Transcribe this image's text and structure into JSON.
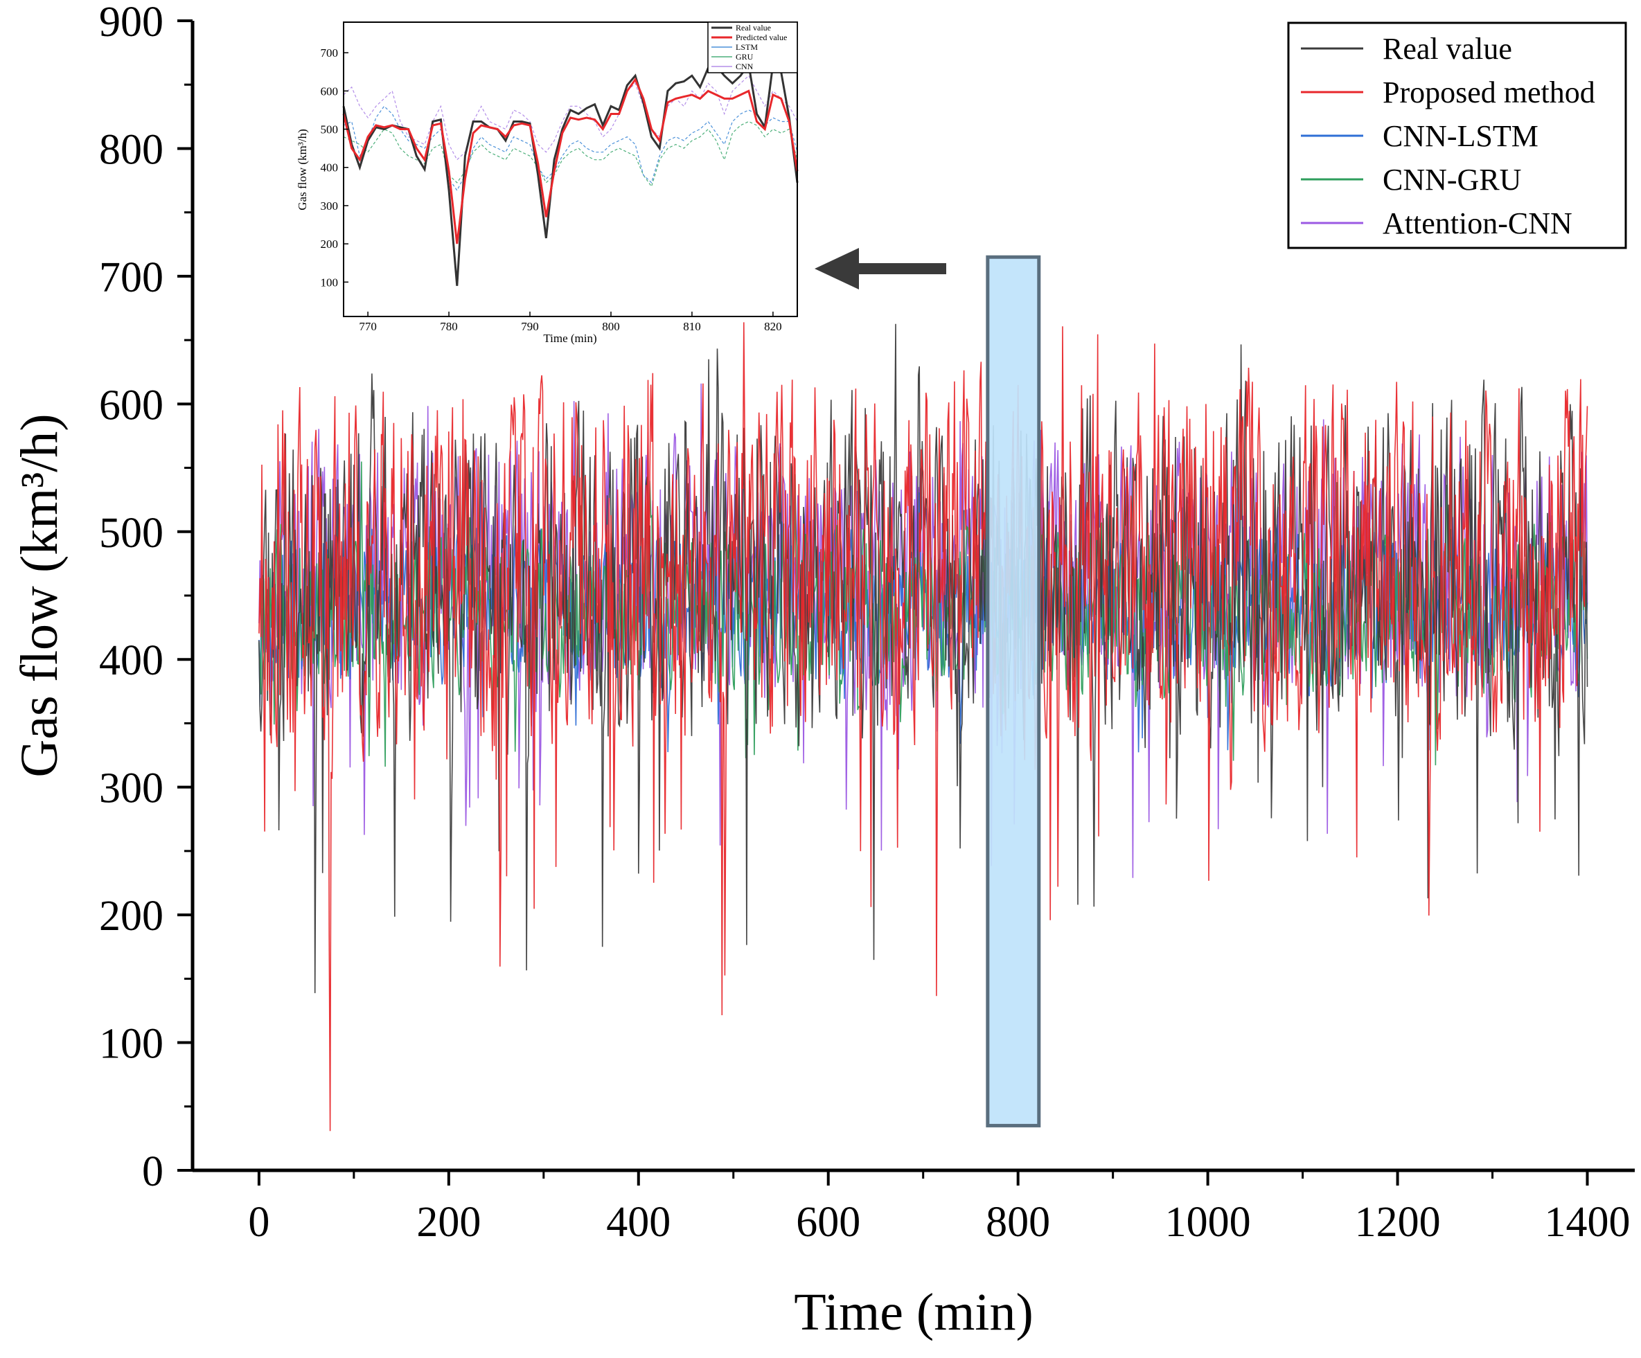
{
  "chart_data": {
    "type": "line",
    "title": "",
    "xlabel": "Time (min)",
    "ylabel": "Gas flow (km³/h)",
    "xlim": [
      -70,
      1450
    ],
    "ylim": [
      0,
      900
    ],
    "xticks": [
      "0",
      "200",
      "400",
      "600",
      "800",
      "1000",
      "1200",
      "1400"
    ],
    "yticks": [
      "0",
      "100",
      "200",
      "300",
      "400",
      "500",
      "600",
      "700",
      "800",
      "900"
    ],
    "legend_position": "top-right",
    "series": [
      {
        "name": "Real value",
        "color": "#3c3c3c",
        "center": 470,
        "spread": 118,
        "spike_depth": 240,
        "seed": 11
      },
      {
        "name": "Proposed method",
        "color": "#e8272b",
        "center": 480,
        "spread": 130,
        "spike_depth": 300,
        "seed": 23
      },
      {
        "name": "CNN-LSTM",
        "color": "#2f6fd6",
        "center": 440,
        "spread": 55,
        "spike_depth": 80,
        "seed": 37
      },
      {
        "name": "CNN-GRU",
        "color": "#2e9e5c",
        "center": 440,
        "spread": 60,
        "spike_depth": 90,
        "seed": 41
      },
      {
        "name": "Attention-CNN",
        "color": "#9b59e3",
        "center": 470,
        "spread": 95,
        "spike_depth": 220,
        "seed": 53
      }
    ],
    "highlight_window": {
      "x_range": [
        768,
        822
      ],
      "y_range": [
        35,
        715
      ],
      "fill": "#bfe3fb",
      "stroke": "#5a6e7e"
    },
    "annotation": {
      "type": "arrow",
      "direction": "left",
      "label": ""
    },
    "inset": {
      "xlabel": "Time (min)",
      "ylabel": "Gas flow (km³/h)",
      "xlim": [
        767,
        823
      ],
      "ylim": [
        10,
        780
      ],
      "xticks": [
        "770",
        "780",
        "790",
        "800",
        "810",
        "820"
      ],
      "yticks": [
        "100",
        "200",
        "300",
        "400",
        "500",
        "600",
        "700"
      ],
      "legend": [
        "Real value",
        "Predicted value",
        "LSTM",
        "GRU",
        "CNN"
      ],
      "legend_colors": [
        "#333333",
        "#e8272b",
        "#4a90d9",
        "#4caf7a",
        "#b38ee8"
      ],
      "x": [
        767,
        768,
        769,
        770,
        771,
        772,
        773,
        774,
        775,
        776,
        777,
        778,
        779,
        780,
        781,
        782,
        783,
        784,
        785,
        786,
        787,
        788,
        789,
        790,
        791,
        792,
        793,
        794,
        795,
        796,
        797,
        798,
        799,
        800,
        801,
        802,
        803,
        804,
        805,
        806,
        807,
        808,
        809,
        810,
        811,
        812,
        813,
        814,
        815,
        816,
        817,
        818,
        819,
        820,
        821,
        822,
        823
      ],
      "series": [
        {
          "name": "Real value",
          "values": [
            560,
            460,
            400,
            470,
            505,
            500,
            510,
            505,
            500,
            430,
            395,
            520,
            525,
            340,
            90,
            430,
            520,
            520,
            505,
            500,
            470,
            520,
            520,
            515,
            380,
            215,
            420,
            500,
            550,
            540,
            555,
            565,
            510,
            560,
            550,
            615,
            640,
            570,
            480,
            450,
            600,
            620,
            625,
            640,
            610,
            660,
            665,
            640,
            620,
            640,
            670,
            540,
            505,
            670,
            650,
            530,
            360
          ]
        },
        {
          "name": "Predicted value",
          "values": [
            540,
            450,
            420,
            480,
            510,
            505,
            510,
            500,
            500,
            450,
            420,
            510,
            515,
            390,
            200,
            370,
            490,
            510,
            505,
            500,
            480,
            510,
            515,
            510,
            410,
            270,
            390,
            490,
            530,
            525,
            530,
            525,
            500,
            540,
            540,
            600,
            630,
            580,
            500,
            470,
            570,
            580,
            585,
            590,
            580,
            600,
            590,
            580,
            580,
            590,
            600,
            520,
            500,
            590,
            580,
            520,
            390
          ]
        },
        {
          "name": "LSTM",
          "values": [
            510,
            520,
            430,
            470,
            530,
            560,
            540,
            500,
            470,
            460,
            450,
            480,
            500,
            370,
            340,
            380,
            450,
            480,
            460,
            450,
            440,
            480,
            470,
            460,
            400,
            370,
            390,
            430,
            460,
            470,
            450,
            440,
            440,
            460,
            470,
            480,
            460,
            380,
            360,
            430,
            470,
            480,
            470,
            490,
            500,
            520,
            490,
            460,
            520,
            540,
            550,
            540,
            510,
            530,
            520,
            520,
            440
          ]
        },
        {
          "name": "GRU",
          "values": [
            480,
            470,
            460,
            440,
            470,
            500,
            490,
            450,
            430,
            420,
            410,
            450,
            460,
            380,
            360,
            390,
            440,
            460,
            440,
            430,
            420,
            450,
            440,
            430,
            400,
            360,
            380,
            420,
            440,
            450,
            430,
            420,
            420,
            440,
            450,
            440,
            430,
            380,
            350,
            420,
            450,
            460,
            450,
            470,
            480,
            500,
            470,
            420,
            490,
            510,
            520,
            510,
            480,
            500,
            490,
            500,
            420
          ]
        },
        {
          "name": "CNN",
          "values": [
            590,
            610,
            560,
            530,
            560,
            580,
            600,
            520,
            480,
            470,
            460,
            520,
            560,
            460,
            420,
            440,
            520,
            560,
            520,
            510,
            500,
            550,
            540,
            520,
            460,
            440,
            470,
            520,
            560,
            560,
            540,
            520,
            480,
            500,
            540,
            600,
            620,
            560,
            500,
            480,
            560,
            580,
            560,
            600,
            580,
            620,
            600,
            540,
            600,
            620,
            640,
            600,
            560,
            600,
            580,
            560,
            520
          ]
        }
      ]
    }
  }
}
